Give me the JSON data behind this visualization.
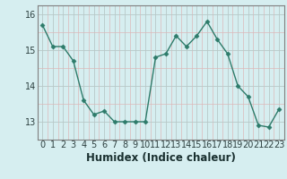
{
  "x": [
    0,
    1,
    2,
    3,
    4,
    5,
    6,
    7,
    8,
    9,
    10,
    11,
    12,
    13,
    14,
    15,
    16,
    17,
    18,
    19,
    20,
    21,
    22,
    23
  ],
  "y": [
    15.7,
    15.1,
    15.1,
    14.7,
    13.6,
    13.2,
    13.3,
    13.0,
    13.0,
    13.0,
    13.0,
    14.8,
    14.9,
    15.4,
    15.1,
    15.4,
    15.8,
    15.3,
    14.9,
    14.0,
    13.7,
    12.9,
    12.85,
    13.35
  ],
  "line_color": "#2D7B6A",
  "marker": "D",
  "marker_size": 2.5,
  "bg_color": "#D6EEF0",
  "grid_color_major": "#B8C8C8",
  "grid_color_minor": "#DDB8B8",
  "xlabel": "Humidex (Indice chaleur)",
  "xlabel_fontsize": 8.5,
  "xtick_labels": [
    "0",
    "1",
    "2",
    "3",
    "4",
    "5",
    "6",
    "7",
    "8",
    "9",
    "10",
    "11",
    "12",
    "13",
    "14",
    "15",
    "16",
    "17",
    "18",
    "19",
    "20",
    "21",
    "22",
    "23"
  ],
  "ytick_labels": [
    "13",
    "14",
    "15",
    "16"
  ],
  "ylim": [
    12.55,
    16.25
  ],
  "xlim": [
    -0.5,
    23.5
  ],
  "tick_fontsize": 7.0
}
